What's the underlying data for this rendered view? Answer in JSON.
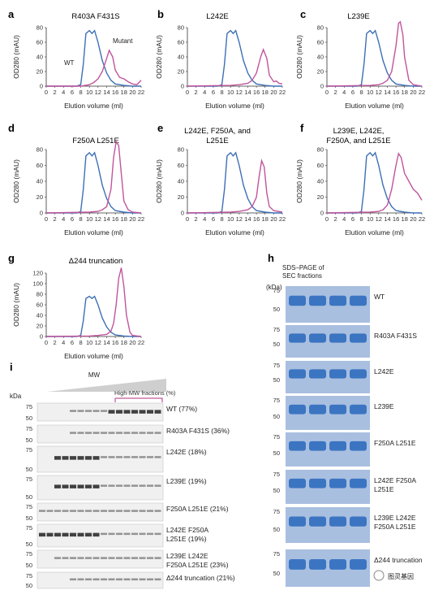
{
  "colors": {
    "wt": "#3d6fb6",
    "mutant": "#c0559b",
    "bracket": "#b0307f",
    "gel_band": "#2f6dbf",
    "gel_bg": "#a9bfe0"
  },
  "sec_common": {
    "ylabel": "OD280 (mAU)",
    "xlabel": "Elution volume (ml)",
    "x_ticks": [
      "0",
      "2",
      "4",
      "6",
      "8",
      "10",
      "12",
      "14",
      "16",
      "18",
      "20",
      "22"
    ],
    "y_ticks": [
      "0",
      "20",
      "40",
      "60",
      "80",
      "100",
      "120"
    ]
  },
  "chart_data": [
    {
      "panel": "a",
      "type": "line",
      "title": "R403A F431S",
      "ylim": [
        0,
        80
      ],
      "xlim": [
        0,
        22
      ],
      "series": [
        {
          "name": "WT",
          "x": [
            0,
            4,
            7,
            8,
            8.6,
            9.2,
            10,
            10.6,
            11.2,
            12,
            13,
            14,
            15,
            16,
            18,
            20,
            22
          ],
          "values": [
            0,
            0,
            0,
            2,
            30,
            72,
            76,
            72,
            76,
            60,
            35,
            18,
            8,
            3,
            1,
            0,
            0
          ]
        },
        {
          "name": "Mutant",
          "x": [
            0,
            6,
            8,
            10,
            11,
            12,
            13,
            14,
            14.6,
            15.4,
            16,
            17,
            18,
            19,
            20,
            21,
            22
          ],
          "values": [
            0,
            0,
            0,
            2,
            5,
            10,
            20,
            38,
            49,
            40,
            22,
            12,
            10,
            6,
            3,
            2,
            8
          ]
        }
      ],
      "labels": {
        "wt": "WT",
        "mutant": "Mutant"
      }
    },
    {
      "panel": "b",
      "type": "line",
      "title": "L242E",
      "ylim": [
        0,
        80
      ],
      "xlim": [
        0,
        22
      ],
      "series": [
        {
          "x": [
            0,
            4,
            7,
            8,
            8.6,
            9.2,
            10,
            10.6,
            11.2,
            12,
            13,
            14,
            15,
            16,
            18,
            20,
            22
          ],
          "values": [
            0,
            0,
            0,
            2,
            30,
            72,
            76,
            72,
            76,
            60,
            35,
            18,
            8,
            3,
            1,
            0,
            0
          ]
        },
        {
          "x": [
            0,
            10,
            12,
            14,
            15,
            16,
            17,
            17.6,
            18.4,
            19,
            20,
            20.6,
            21.2,
            22
          ],
          "values": [
            0,
            1,
            2,
            4,
            8,
            18,
            40,
            50,
            38,
            15,
            6,
            7,
            4,
            3
          ]
        }
      ]
    },
    {
      "panel": "c",
      "type": "line",
      "title": "L239E",
      "ylim": [
        0,
        80
      ],
      "xlim": [
        0,
        22
      ],
      "series": [
        {
          "x": [
            0,
            4,
            7,
            8,
            8.6,
            9.2,
            10,
            10.6,
            11.2,
            12,
            13,
            14,
            15,
            16,
            18,
            20,
            22
          ],
          "values": [
            0,
            0,
            0,
            2,
            30,
            72,
            76,
            72,
            76,
            60,
            35,
            18,
            8,
            3,
            1,
            0,
            0
          ]
        },
        {
          "x": [
            0,
            10,
            12,
            13,
            14,
            15,
            16,
            16.6,
            17,
            17.6,
            18,
            19,
            20,
            22
          ],
          "values": [
            0,
            1,
            2,
            4,
            8,
            20,
            55,
            86,
            88,
            70,
            40,
            8,
            2,
            0
          ]
        }
      ]
    },
    {
      "panel": "d",
      "type": "line",
      "title": "F250A L251E",
      "ylim": [
        0,
        80
      ],
      "xlim": [
        0,
        22
      ],
      "series": [
        {
          "x": [
            0,
            4,
            7,
            8,
            8.6,
            9.2,
            10,
            10.6,
            11.2,
            12,
            13,
            14,
            15,
            16,
            18,
            20,
            22
          ],
          "values": [
            0,
            0,
            0,
            2,
            30,
            72,
            76,
            72,
            76,
            60,
            35,
            18,
            8,
            3,
            1,
            0,
            0
          ]
        },
        {
          "x": [
            0,
            10,
            12,
            13,
            14,
            15,
            15.6,
            16.2,
            16.8,
            17.4,
            18,
            19,
            20,
            22
          ],
          "values": [
            0,
            1,
            2,
            4,
            8,
            30,
            70,
            90,
            85,
            50,
            15,
            4,
            1,
            0
          ]
        }
      ]
    },
    {
      "panel": "e",
      "type": "line",
      "title": "L242E, F250A, and L251E",
      "ylim": [
        0,
        80
      ],
      "xlim": [
        0,
        22
      ],
      "series": [
        {
          "x": [
            0,
            4,
            7,
            8,
            8.6,
            9.2,
            10,
            10.6,
            11.2,
            12,
            13,
            14,
            15,
            16,
            18,
            20,
            22
          ],
          "values": [
            0,
            0,
            0,
            2,
            30,
            72,
            76,
            72,
            76,
            60,
            35,
            18,
            8,
            3,
            1,
            0,
            0
          ]
        },
        {
          "x": [
            0,
            10,
            12,
            14,
            15,
            16,
            16.6,
            17.2,
            17.8,
            18.4,
            19,
            20,
            21,
            22
          ],
          "values": [
            0,
            1,
            2,
            4,
            8,
            20,
            45,
            66,
            58,
            25,
            8,
            3,
            2,
            1
          ]
        }
      ]
    },
    {
      "panel": "f",
      "type": "line",
      "title": "L239E, L242E, F250A, and L251E",
      "ylim": [
        0,
        80
      ],
      "xlim": [
        0,
        22
      ],
      "series": [
        {
          "x": [
            0,
            4,
            7,
            8,
            8.6,
            9.2,
            10,
            10.6,
            11.2,
            12,
            13,
            14,
            15,
            16,
            18,
            20,
            22
          ],
          "values": [
            0,
            0,
            0,
            2,
            30,
            72,
            76,
            72,
            76,
            60,
            35,
            18,
            8,
            3,
            1,
            0,
            0
          ]
        },
        {
          "x": [
            0,
            10,
            12,
            13,
            14,
            15,
            16,
            16.6,
            17.2,
            18,
            19,
            20,
            21,
            22
          ],
          "values": [
            0,
            1,
            2,
            4,
            10,
            30,
            60,
            75,
            70,
            50,
            40,
            30,
            25,
            16
          ]
        }
      ]
    },
    {
      "panel": "g",
      "type": "line",
      "title": "Δ244 truncation",
      "ylim": [
        0,
        120
      ],
      "xlim": [
        0,
        22
      ],
      "series": [
        {
          "x": [
            0,
            4,
            7,
            8,
            8.6,
            9.2,
            10,
            10.6,
            11.2,
            12,
            13,
            14,
            15,
            16,
            18,
            20,
            22
          ],
          "values": [
            0,
            0,
            0,
            2,
            30,
            72,
            76,
            72,
            76,
            60,
            35,
            18,
            8,
            3,
            1,
            0,
            0
          ]
        },
        {
          "x": [
            0,
            10,
            12,
            14,
            15,
            15.6,
            16.2,
            16.8,
            17.4,
            18,
            18.6,
            19.4,
            20,
            22
          ],
          "values": [
            0,
            1,
            2,
            4,
            10,
            25,
            60,
            110,
            130,
            95,
            40,
            8,
            2,
            0
          ]
        }
      ]
    }
  ],
  "panel_h": {
    "label": "h",
    "title_lines": [
      "SDS–PAGE of",
      "SEC fractions"
    ],
    "unit": "(kDa)",
    "gels": [
      {
        "name": "WT",
        "markers": [
          "75",
          "50"
        ]
      },
      {
        "name": "R403A F431S",
        "markers": [
          "75",
          "50"
        ]
      },
      {
        "name": "L242E",
        "markers": [
          "75",
          "50"
        ]
      },
      {
        "name": "L239E",
        "markers": [
          "75",
          "50"
        ]
      },
      {
        "name": "F250A L251E",
        "markers": [
          "75",
          "50"
        ]
      },
      {
        "name": "L242E F250A\nL251E",
        "markers": [
          "75",
          "50"
        ]
      },
      {
        "name": "L239E L242E\nF250A L251E",
        "markers": [
          "75",
          "50"
        ]
      },
      {
        "name": "Δ244 truncation",
        "markers": [
          "75",
          "50"
        ]
      }
    ]
  },
  "panel_i": {
    "label": "i",
    "mw_label": "MW",
    "unit": "kDa",
    "bracket_label": "High-MW fractions (%)",
    "rows": [
      {
        "name": "WT (77%)",
        "markers": [
          "75",
          "50"
        ]
      },
      {
        "name": "R403A F431S (36%)",
        "markers": [
          "75",
          "50"
        ]
      },
      {
        "name": "L242E (18%)",
        "markers": [
          "75",
          "50"
        ]
      },
      {
        "name": "L239E (19%)",
        "markers": [
          "75",
          "50"
        ]
      },
      {
        "name": "F250A L251E (21%)",
        "markers": [
          "75",
          "50"
        ]
      },
      {
        "name": "L242E F250A\nL251E (19%)",
        "markers": [
          "75",
          "50"
        ]
      },
      {
        "name": "L239E L242E\nF250A L251E (23%)",
        "markers": [
          "75",
          "50"
        ]
      },
      {
        "name": "Δ244 truncation (21%)",
        "markers": [
          "75",
          "50"
        ]
      }
    ]
  },
  "watermark": "图灵基因"
}
